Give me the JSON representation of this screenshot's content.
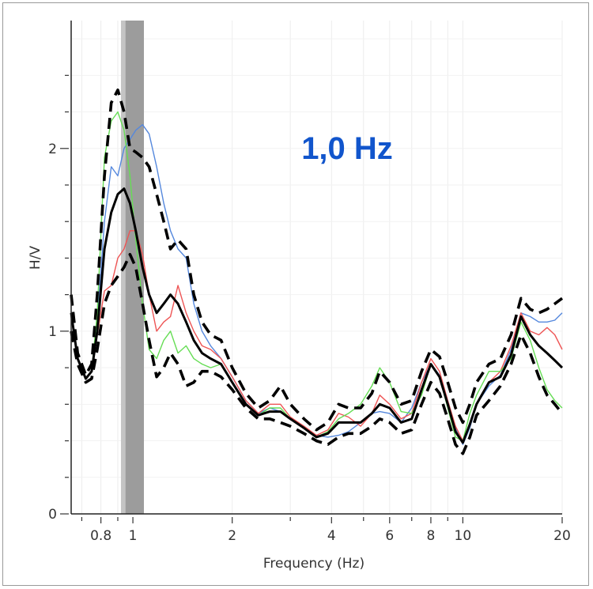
{
  "chart_data": {
    "type": "line",
    "xlabel": "Frequency (Hz)",
    "ylabel": "H/V",
    "xscale": "log",
    "xlim": [
      0.65,
      20
    ],
    "ylim": [
      0,
      2.7
    ],
    "x_tick_labels": [
      {
        "value": 0.8,
        "label": "0.8"
      },
      {
        "value": 1,
        "label": "1"
      },
      {
        "value": 2,
        "label": "2"
      },
      {
        "value": 4,
        "label": "4"
      },
      {
        "value": 6,
        "label": "6"
      },
      {
        "value": 8,
        "label": "8"
      },
      {
        "value": 10,
        "label": "10"
      },
      {
        "value": 20,
        "label": "20"
      }
    ],
    "y_tick_labels": [
      {
        "value": 0,
        "label": "0"
      },
      {
        "value": 1,
        "label": "1"
      },
      {
        "value": 2,
        "label": "2"
      }
    ],
    "annotation": {
      "text": "1,0 Hz",
      "color": "#1155cc"
    },
    "peak_band": {
      "f0_range": [
        0.92,
        1.05
      ],
      "std_range": [
        0.95,
        1.08
      ],
      "colors": [
        "#c4c4c4",
        "#9c9c9c"
      ]
    },
    "grid": true,
    "x": [
      0.65,
      0.68,
      0.72,
      0.75,
      0.78,
      0.82,
      0.86,
      0.9,
      0.94,
      0.98,
      1.02,
      1.07,
      1.12,
      1.18,
      1.24,
      1.3,
      1.37,
      1.45,
      1.53,
      1.62,
      1.72,
      1.85,
      2.0,
      2.2,
      2.4,
      2.6,
      2.8,
      3.0,
      3.3,
      3.6,
      3.9,
      4.2,
      4.5,
      4.9,
      5.3,
      5.6,
      6.0,
      6.5,
      7.0,
      7.5,
      8.0,
      8.5,
      9.0,
      9.5,
      10.0,
      10.5,
      11.0,
      12.0,
      13.0,
      14.0,
      15.0,
      16.0,
      17.0,
      18.0,
      19.0,
      20.0
    ],
    "series": [
      {
        "color": "#5588dd",
        "style": "solid-thin",
        "values": [
          1.1,
          0.85,
          0.74,
          0.78,
          1.05,
          1.6,
          1.9,
          1.85,
          2.0,
          2.05,
          2.1,
          2.13,
          2.08,
          1.9,
          1.7,
          1.55,
          1.45,
          1.4,
          1.15,
          1.0,
          0.92,
          0.85,
          0.75,
          0.62,
          0.55,
          0.58,
          0.56,
          0.52,
          0.47,
          0.43,
          0.42,
          0.43,
          0.45,
          0.5,
          0.55,
          0.56,
          0.55,
          0.5,
          0.58,
          0.72,
          0.82,
          0.76,
          0.62,
          0.47,
          0.38,
          0.47,
          0.6,
          0.7,
          0.76,
          0.9,
          1.1,
          1.08,
          1.05,
          1.05,
          1.06,
          1.1
        ]
      },
      {
        "color": "#ee5555",
        "style": "solid-thin",
        "values": [
          1.1,
          0.85,
          0.74,
          0.78,
          0.98,
          1.22,
          1.25,
          1.4,
          1.45,
          1.55,
          1.55,
          1.42,
          1.2,
          1.0,
          1.05,
          1.08,
          1.25,
          1.1,
          1.0,
          0.92,
          0.9,
          0.85,
          0.75,
          0.62,
          0.55,
          0.6,
          0.6,
          0.53,
          0.48,
          0.43,
          0.46,
          0.55,
          0.53,
          0.48,
          0.55,
          0.65,
          0.6,
          0.52,
          0.55,
          0.72,
          0.85,
          0.78,
          0.62,
          0.48,
          0.4,
          0.48,
          0.6,
          0.72,
          0.78,
          0.92,
          1.1,
          1.0,
          0.98,
          1.02,
          0.98,
          0.9
        ]
      },
      {
        "color": "#66dd55",
        "style": "solid-thin",
        "values": [
          1.1,
          0.85,
          0.74,
          0.78,
          1.1,
          1.95,
          2.15,
          2.2,
          2.1,
          1.85,
          1.5,
          1.15,
          0.9,
          0.85,
          0.95,
          1.0,
          0.88,
          0.92,
          0.85,
          0.82,
          0.8,
          0.82,
          0.72,
          0.6,
          0.54,
          0.58,
          0.58,
          0.52,
          0.47,
          0.42,
          0.45,
          0.52,
          0.55,
          0.6,
          0.7,
          0.8,
          0.72,
          0.56,
          0.55,
          0.65,
          0.82,
          0.75,
          0.58,
          0.42,
          0.4,
          0.55,
          0.65,
          0.78,
          0.78,
          0.85,
          1.05,
          0.95,
          0.8,
          0.68,
          0.62,
          0.58
        ]
      },
      {
        "color": "#000000",
        "style": "solid-thick",
        "values": [
          1.1,
          0.85,
          0.74,
          0.78,
          1.0,
          1.45,
          1.65,
          1.75,
          1.78,
          1.7,
          1.55,
          1.35,
          1.2,
          1.1,
          1.15,
          1.2,
          1.15,
          1.05,
          0.95,
          0.88,
          0.85,
          0.82,
          0.72,
          0.6,
          0.54,
          0.56,
          0.56,
          0.52,
          0.47,
          0.42,
          0.44,
          0.5,
          0.5,
          0.5,
          0.55,
          0.6,
          0.58,
          0.5,
          0.52,
          0.68,
          0.82,
          0.75,
          0.6,
          0.45,
          0.39,
          0.49,
          0.6,
          0.72,
          0.75,
          0.87,
          1.08,
          0.98,
          0.92,
          0.88,
          0.84,
          0.8
        ]
      },
      {
        "color": "#000000",
        "style": "dashed-thick",
        "values": [
          1.2,
          0.88,
          0.76,
          0.82,
          1.2,
          1.85,
          2.25,
          2.32,
          2.2,
          2.0,
          1.98,
          1.95,
          1.9,
          1.75,
          1.6,
          1.45,
          1.5,
          1.45,
          1.2,
          1.05,
          0.98,
          0.95,
          0.8,
          0.66,
          0.58,
          0.62,
          0.7,
          0.6,
          0.52,
          0.46,
          0.5,
          0.6,
          0.58,
          0.58,
          0.66,
          0.78,
          0.72,
          0.6,
          0.62,
          0.78,
          0.9,
          0.86,
          0.72,
          0.58,
          0.5,
          0.6,
          0.72,
          0.82,
          0.85,
          0.98,
          1.18,
          1.12,
          1.1,
          1.12,
          1.15,
          1.18
        ]
      },
      {
        "color": "#000000",
        "style": "dashed-thick",
        "values": [
          1.0,
          0.82,
          0.72,
          0.74,
          0.9,
          1.15,
          1.25,
          1.3,
          1.35,
          1.42,
          1.35,
          1.15,
          0.95,
          0.75,
          0.8,
          0.88,
          0.82,
          0.7,
          0.72,
          0.78,
          0.78,
          0.75,
          0.68,
          0.58,
          0.52,
          0.52,
          0.5,
          0.48,
          0.44,
          0.4,
          0.38,
          0.42,
          0.44,
          0.44,
          0.48,
          0.52,
          0.5,
          0.44,
          0.46,
          0.6,
          0.72,
          0.66,
          0.52,
          0.38,
          0.33,
          0.42,
          0.54,
          0.62,
          0.7,
          0.82,
          0.98,
          0.88,
          0.75,
          0.65,
          0.6,
          0.55
        ]
      }
    ]
  }
}
